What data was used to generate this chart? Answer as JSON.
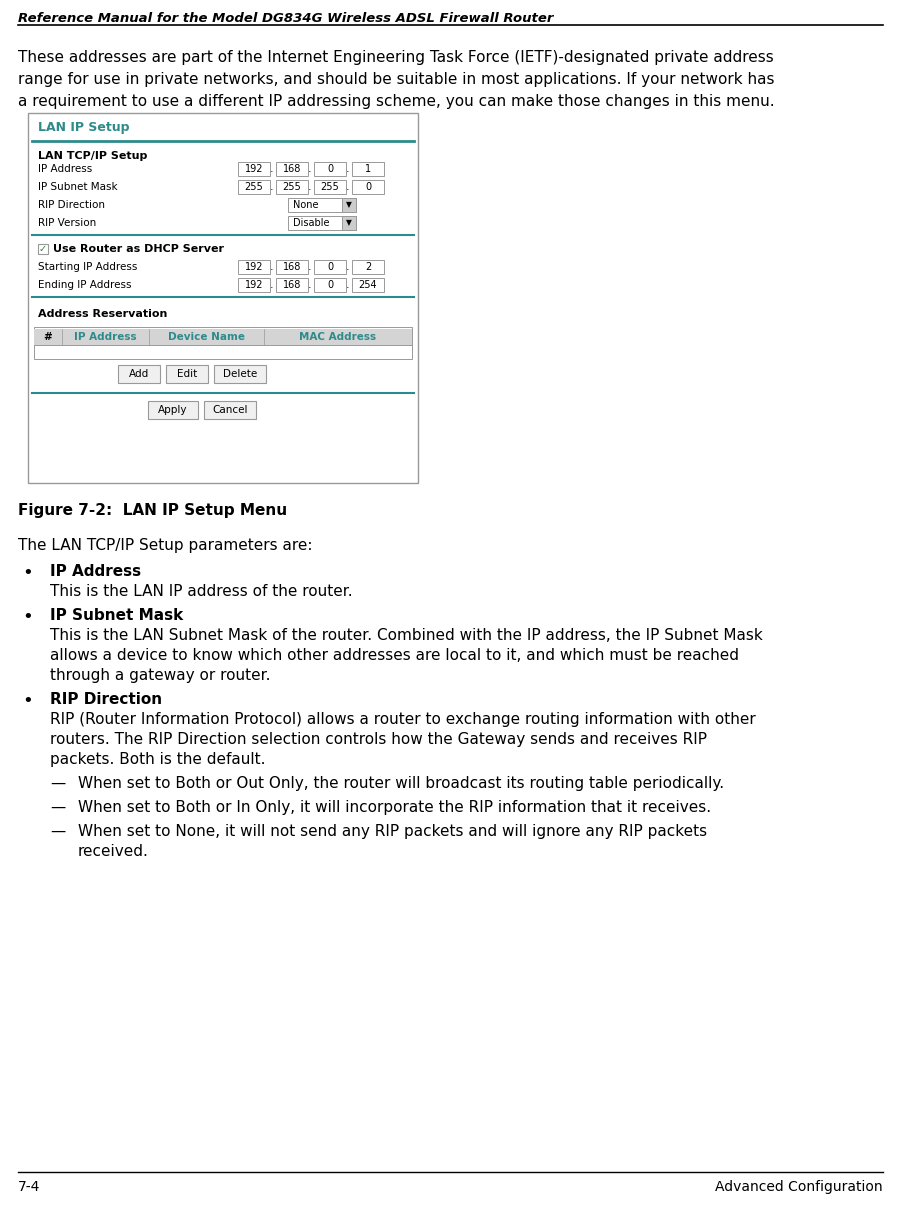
{
  "header_title": "Reference Manual for the Model DG834G Wireless ADSL Firewall Router",
  "footer_left": "7-4",
  "footer_right": "Advanced Configuration",
  "body_para_lines": [
    "These addresses are part of the Internet Engineering Task Force (IETF)-designated private address",
    "range for use in private networks, and should be suitable in most applications. If your network has",
    "a requirement to use a different IP addressing scheme, you can make those changes in this menu."
  ],
  "figure_label": "Figure 7-2:  LAN IP Setup Menu",
  "section_intro": "The LAN TCP/IP Setup parameters are:",
  "bullet1_title": "IP Address",
  "bullet1_text": "This is the LAN IP address of the router.",
  "bullet2_title": "IP Subnet Mask",
  "bullet2_lines": [
    "This is the LAN Subnet Mask of the router. Combined with the IP address, the IP Subnet Mask",
    "allows a device to know which other addresses are local to it, and which must be reached",
    "through a gateway or router."
  ],
  "bullet3_title": "RIP Direction",
  "bullet3_lines": [
    "RIP (Router Information Protocol) allows a router to exchange routing information with other",
    "routers. The RIP Direction selection controls how the Gateway sends and receives RIP",
    "packets. Both is the default."
  ],
  "dash1_lines": [
    "When set to Both or Out Only, the router will broadcast its routing table periodically."
  ],
  "dash2_lines": [
    "When set to Both or In Only, it will incorporate the RIP information that it receives."
  ],
  "dash3_lines": [
    "When set to None, it will not send any RIP packets and will ignore any RIP packets",
    "received."
  ],
  "bg_color": "#ffffff",
  "text_color": "#000000",
  "teal_color": "#2e8b8b",
  "gray_border": "#999999",
  "light_gray": "#e0e0e0",
  "mid_gray": "#c8c8c8"
}
